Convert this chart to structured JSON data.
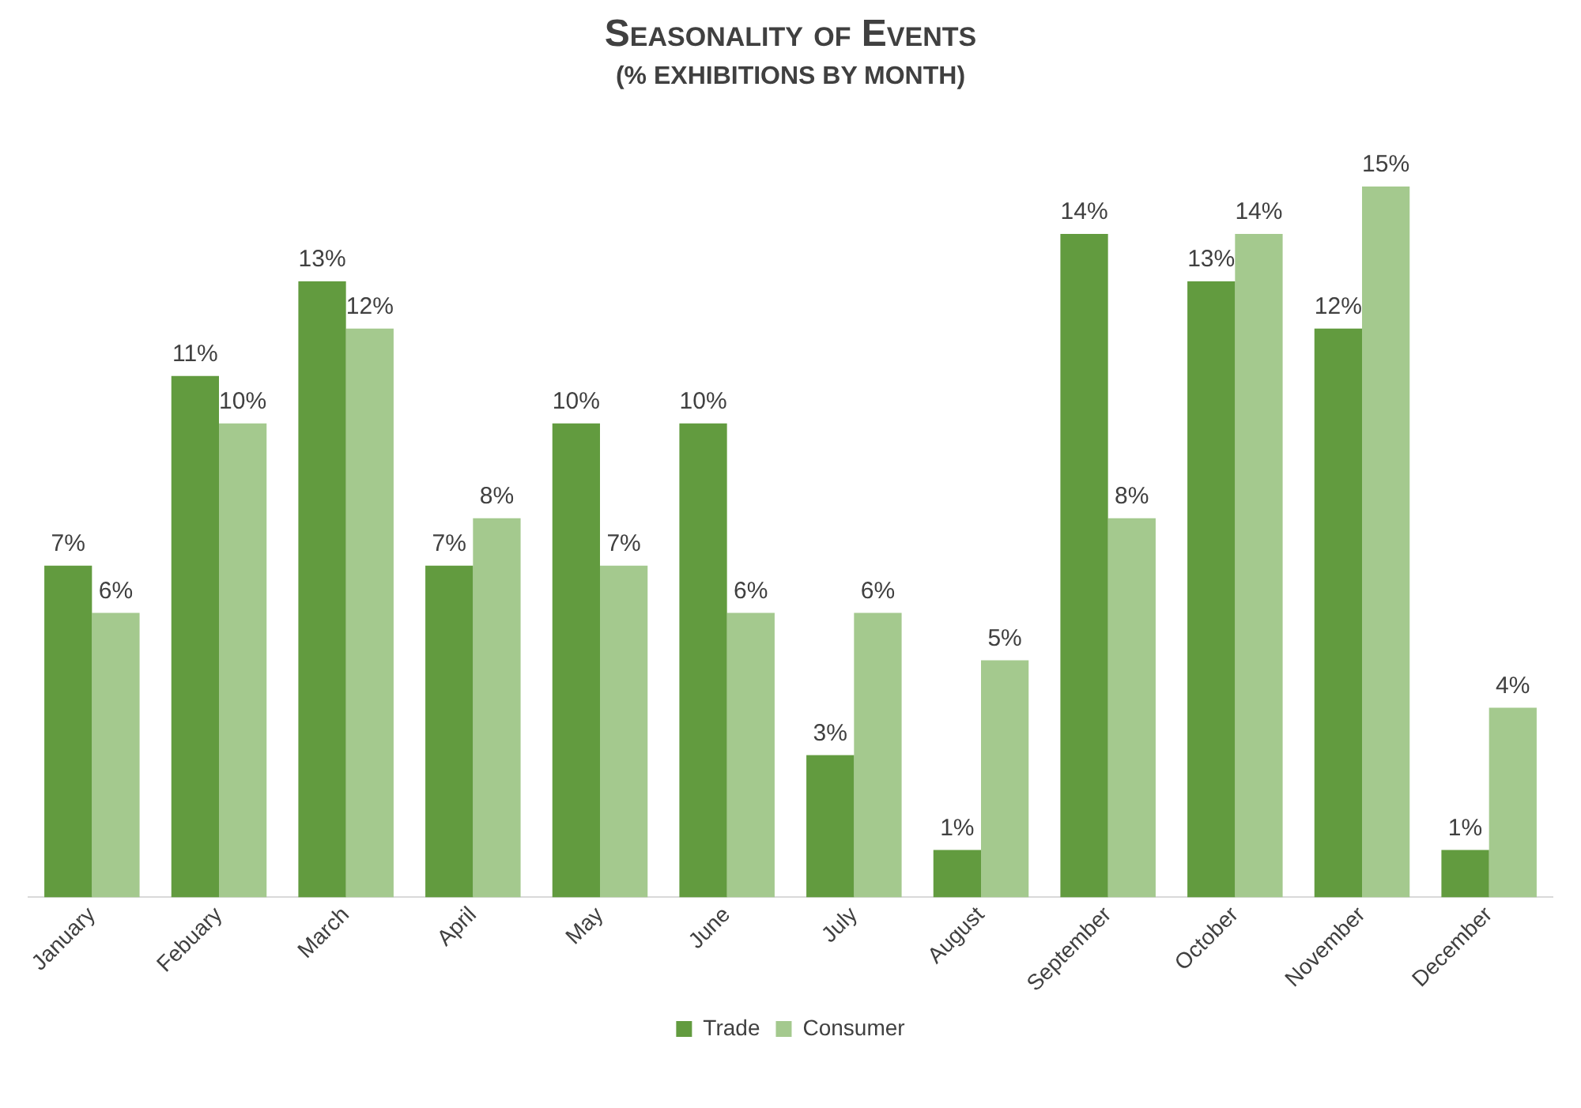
{
  "chart_data": {
    "type": "bar",
    "title": "Seasonality of Events",
    "subtitle": "(% EXHIBITIONS BY MONTH)",
    "categories": [
      "January",
      "Febuary",
      "March",
      "April",
      "May",
      "June",
      "July",
      "August",
      "September",
      "October",
      "November",
      "December"
    ],
    "series": [
      {
        "name": "Trade",
        "color": "#629b3f",
        "values": [
          7,
          11,
          13,
          7,
          10,
          10,
          3,
          1,
          14,
          13,
          12,
          1
        ],
        "value_labels": [
          "7%",
          "11%",
          "13%",
          "7%",
          "10%",
          "10%",
          "3%",
          "1%",
          "14%",
          "13%",
          "12%",
          "1%"
        ]
      },
      {
        "name": "Consumer",
        "color": "#a4c98e",
        "values": [
          6,
          10,
          12,
          8,
          7,
          6,
          6,
          5,
          8,
          14,
          15,
          4
        ],
        "value_labels": [
          "6%",
          "10%",
          "12%",
          "8%",
          "7%",
          "6%",
          "6%",
          "5%",
          "8%",
          "14%",
          "15%",
          "4%"
        ]
      }
    ],
    "grid": false,
    "legend": "bottom"
  }
}
